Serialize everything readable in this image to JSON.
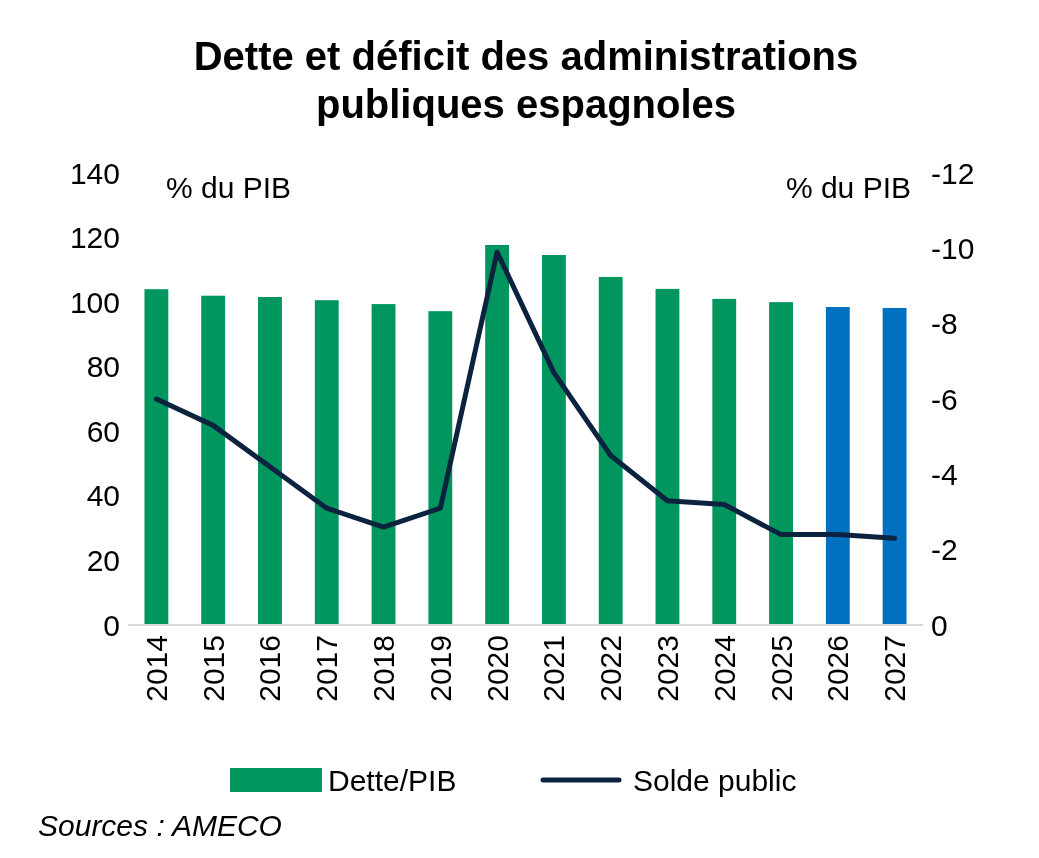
{
  "chart_data": {
    "type": "bar",
    "title": "Dette et déficit des administrations publiques espagnoles",
    "ylabel": "% du PIB",
    "y2label": "% du PIB",
    "categories": [
      "2014",
      "2015",
      "2016",
      "2017",
      "2018",
      "2019",
      "2020",
      "2021",
      "2022",
      "2023",
      "2024",
      "2025",
      "2026",
      "2027"
    ],
    "series": [
      {
        "name": "Dette/PIB",
        "color": "#00965e",
        "colors": [
          "#00965e",
          "#00965e",
          "#00965e",
          "#00965e",
          "#00965e",
          "#00965e",
          "#00965e",
          "#00965e",
          "#00965e",
          "#00965e",
          "#00965e",
          "#00965e",
          "#0070c0",
          "#0070c0"
        ],
        "values": [
          104,
          102,
          101.6,
          100.6,
          99.4,
          97.2,
          117.7,
          114.6,
          107.8,
          104.1,
          101,
          100,
          98.5,
          98.2
        ]
      },
      {
        "name": "Solde public",
        "type": "line",
        "axis": "y2",
        "color": "#0c2340",
        "values": [
          -6.0,
          -5.3,
          -4.2,
          -3.1,
          -2.6,
          -3.1,
          -9.9,
          -6.7,
          -4.5,
          -3.3,
          -3.2,
          -2.4,
          -2.4,
          -2.3
        ]
      }
    ],
    "ylim": [
      0,
      140
    ],
    "yticks": [
      0,
      20,
      40,
      60,
      80,
      100,
      120,
      140
    ],
    "y2lim": [
      0,
      -12
    ],
    "y2ticks": [
      0,
      -2,
      -4,
      -6,
      -8,
      -10,
      -12
    ],
    "legend": "bottom",
    "grid": false,
    "annotations": [
      "Sources : AMECO"
    ]
  }
}
